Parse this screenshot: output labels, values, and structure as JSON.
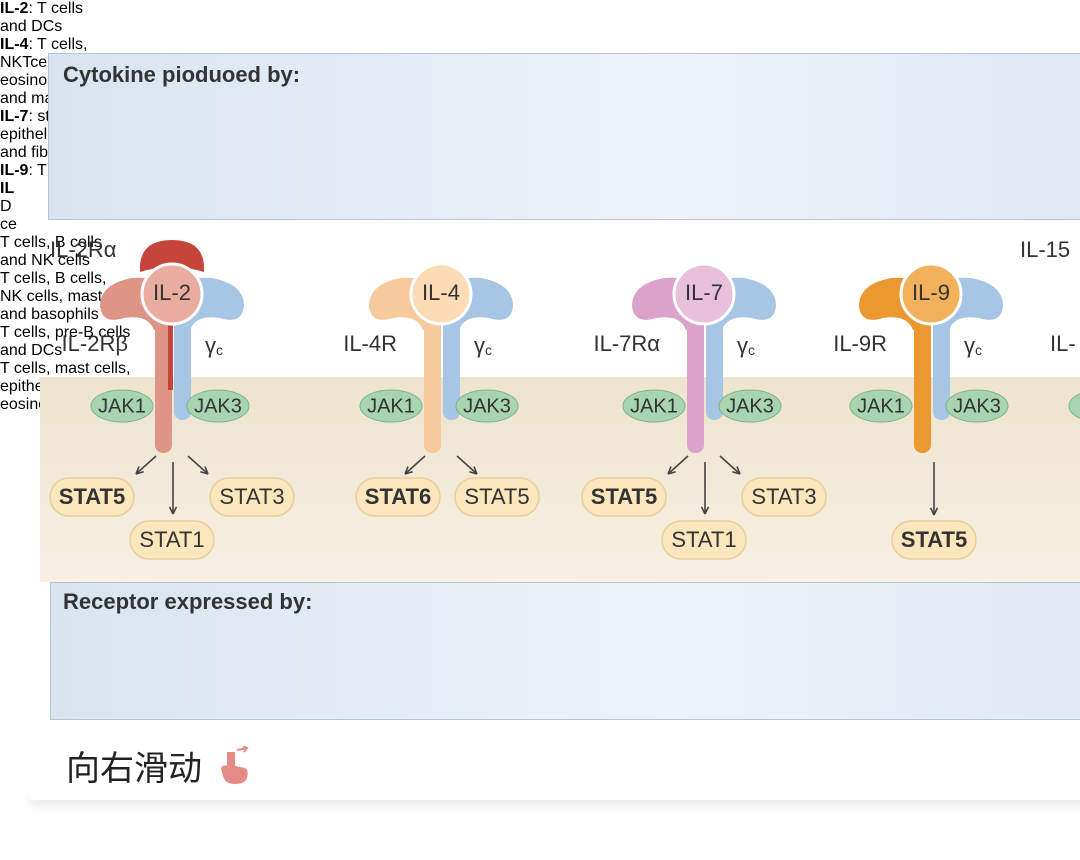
{
  "header": {
    "title": "Cytokine pioduoed by:",
    "columns": [
      {
        "cytokine": "IL-2",
        "lines": [
          ": T cells",
          "and DCs"
        ]
      },
      {
        "cytokine": "IL-4",
        "lines": [
          ": T cells,",
          "NKTcells,",
          "eosinophils",
          "and mast cells"
        ]
      },
      {
        "cytokine": "IL-7",
        "lines": [
          ": stromal cells,",
          "epithelialcells",
          "and fibroblasts"
        ]
      },
      {
        "cytokine": "IL-9",
        "lines": [
          ": T cells"
        ]
      },
      {
        "cytokine": "IL",
        "lines": [
          "D",
          "ce"
        ]
      }
    ]
  },
  "receptors": [
    {
      "ligand": "IL-2",
      "alpha": "IL-2Rα",
      "chain": "IL-2Rβ",
      "gamma": "γ",
      "gamma_sub": "c",
      "jaks": [
        "JAK1",
        "JAK3"
      ],
      "stats": [
        "STAT5",
        "STAT3",
        "STAT1"
      ]
    },
    {
      "ligand": "IL-4",
      "chain": "IL-4R",
      "gamma": "γ",
      "gamma_sub": "c",
      "jaks": [
        "JAK1",
        "JAK3"
      ],
      "stats": [
        "STAT6",
        "STAT5"
      ]
    },
    {
      "ligand": "IL-7",
      "chain": "IL-7Rα",
      "gamma": "γ",
      "gamma_sub": "c",
      "jaks": [
        "JAK1",
        "JAK3"
      ],
      "stats": [
        "STAT5",
        "STAT3",
        "STAT1"
      ]
    },
    {
      "ligand": "IL-9",
      "chain": "IL-9R",
      "gamma": "γ",
      "gamma_sub": "c",
      "jaks": [
        "JAK1",
        "JAK3"
      ],
      "stats": [
        "STAT5"
      ]
    }
  ],
  "partial_receptor": {
    "ligand": "IL-15",
    "chain": "IL-"
  },
  "footer_box": {
    "title": "Receptor expressed by:",
    "columns": [
      [
        "T cells, B cells",
        "and NK cells"
      ],
      [
        "T cells, B cells,",
        "NK cells, mast cells",
        "and basophils"
      ],
      [
        "T cells, pre-B cells",
        "and DCs"
      ],
      [
        "T cells, mast cells,",
        "epithelial cells and",
        "eosinophils"
      ]
    ]
  },
  "swipe_hint": "向右滑动"
}
